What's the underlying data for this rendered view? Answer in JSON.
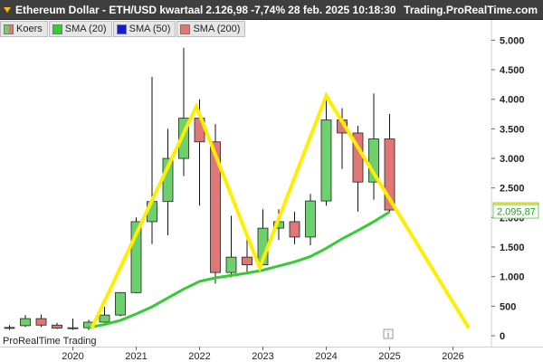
{
  "title": {
    "instrument": "Ethereum Dollar - ETH/USD kwartaal",
    "last": "2.126,98",
    "change": "-7,74%",
    "datetime": "28 feb. 2025 10:18:30",
    "site": "Trading.ProRealTime.com"
  },
  "legend": [
    {
      "label": "Koers",
      "color": "split"
    },
    {
      "label": "SMA (20)",
      "color": "#33cc33"
    },
    {
      "label": "SMA (50)",
      "color": "#1a1acc"
    },
    {
      "label": "SMA (200)",
      "color": "#e07777"
    }
  ],
  "watermark": "ProRealTime Trading",
  "info_icon": "i",
  "price_tags": [
    {
      "label": "2.126,98",
      "value": 2126.98,
      "style": "yellow"
    },
    {
      "label": "2.095,87",
      "value": 2095.87,
      "style": "green"
    }
  ],
  "chart_data": {
    "type": "candlestick",
    "yaxis": {
      "min": 0,
      "max": 5000,
      "ticks": [
        0,
        500,
        1000,
        1500,
        2000,
        2500,
        3000,
        3500,
        4000,
        4500,
        5000
      ],
      "tick_labels": [
        "0",
        "500",
        "1.000",
        "1.500",
        "2.000",
        "2.500",
        "3.000",
        "3.500",
        "4.000",
        "4.500",
        "5.000"
      ]
    },
    "xaxis": {
      "labels": [
        "2020",
        "2021",
        "2022",
        "2023",
        "2024",
        "2025",
        "2026"
      ]
    },
    "candles": [
      {
        "t": 2019.0,
        "o": 140,
        "h": 180,
        "l": 100,
        "c": 130
      },
      {
        "t": 2019.25,
        "o": 170,
        "h": 350,
        "l": 150,
        "c": 290
      },
      {
        "t": 2019.5,
        "o": 290,
        "h": 360,
        "l": 150,
        "c": 180
      },
      {
        "t": 2019.75,
        "o": 180,
        "h": 220,
        "l": 115,
        "c": 130
      },
      {
        "t": 2020.0,
        "o": 130,
        "h": 290,
        "l": 100,
        "c": 135
      },
      {
        "t": 2020.25,
        "o": 135,
        "h": 270,
        "l": 95,
        "c": 230
      },
      {
        "t": 2020.5,
        "o": 230,
        "h": 490,
        "l": 220,
        "c": 350
      },
      {
        "t": 2020.75,
        "o": 350,
        "h": 740,
        "l": 330,
        "c": 730
      },
      {
        "t": 2021.0,
        "o": 730,
        "h": 2000,
        "l": 720,
        "c": 1930
      },
      {
        "t": 2021.25,
        "o": 1930,
        "h": 4380,
        "l": 1550,
        "c": 2270
      },
      {
        "t": 2021.5,
        "o": 2270,
        "h": 3500,
        "l": 1700,
        "c": 3000
      },
      {
        "t": 2021.75,
        "o": 3000,
        "h": 4870,
        "l": 2700,
        "c": 3680
      },
      {
        "t": 2022.0,
        "o": 3680,
        "h": 4000,
        "l": 2200,
        "c": 3280
      },
      {
        "t": 2022.25,
        "o": 3280,
        "h": 3580,
        "l": 880,
        "c": 1070
      },
      {
        "t": 2022.5,
        "o": 1070,
        "h": 2030,
        "l": 990,
        "c": 1330
      },
      {
        "t": 2022.75,
        "o": 1330,
        "h": 1660,
        "l": 1070,
        "c": 1200
      },
      {
        "t": 2023.0,
        "o": 1200,
        "h": 2140,
        "l": 1190,
        "c": 1820
      },
      {
        "t": 2023.25,
        "o": 1820,
        "h": 2140,
        "l": 1620,
        "c": 1930
      },
      {
        "t": 2023.5,
        "o": 1930,
        "h": 2100,
        "l": 1550,
        "c": 1670
      },
      {
        "t": 2023.75,
        "o": 1670,
        "h": 2400,
        "l": 1530,
        "c": 2280
      },
      {
        "t": 2024.0,
        "o": 2280,
        "h": 4100,
        "l": 2200,
        "c": 3650
      },
      {
        "t": 2024.25,
        "o": 3650,
        "h": 3850,
        "l": 2820,
        "c": 3430
      },
      {
        "t": 2024.5,
        "o": 3430,
        "h": 3550,
        "l": 2100,
        "c": 2600
      },
      {
        "t": 2024.75,
        "o": 2600,
        "h": 4100,
        "l": 2300,
        "c": 3330
      },
      {
        "t": 2025.0,
        "o": 3330,
        "h": 3750,
        "l": 2100,
        "c": 2127
      }
    ],
    "sma20": [
      {
        "t": 2020.25,
        "v": 140
      },
      {
        "t": 2020.5,
        "v": 190
      },
      {
        "t": 2020.75,
        "v": 260
      },
      {
        "t": 2021.0,
        "v": 370
      },
      {
        "t": 2021.25,
        "v": 490
      },
      {
        "t": 2021.5,
        "v": 640
      },
      {
        "t": 2021.75,
        "v": 790
      },
      {
        "t": 2022.0,
        "v": 920
      },
      {
        "t": 2022.25,
        "v": 980
      },
      {
        "t": 2022.5,
        "v": 1020
      },
      {
        "t": 2022.75,
        "v": 1060
      },
      {
        "t": 2023.0,
        "v": 1110
      },
      {
        "t": 2023.25,
        "v": 1180
      },
      {
        "t": 2023.5,
        "v": 1250
      },
      {
        "t": 2023.75,
        "v": 1340
      },
      {
        "t": 2024.0,
        "v": 1480
      },
      {
        "t": 2024.25,
        "v": 1640
      },
      {
        "t": 2024.5,
        "v": 1780
      },
      {
        "t": 2024.75,
        "v": 1930
      },
      {
        "t": 2025.0,
        "v": 2096
      }
    ],
    "drawn_lines": [
      {
        "t": 2020.3,
        "v": 130
      },
      {
        "t": 2021.95,
        "v": 3880
      },
      {
        "t": 2022.95,
        "v": 1150
      },
      {
        "t": 2024.0,
        "v": 4060
      },
      {
        "t": 2026.25,
        "v": 130
      }
    ]
  }
}
